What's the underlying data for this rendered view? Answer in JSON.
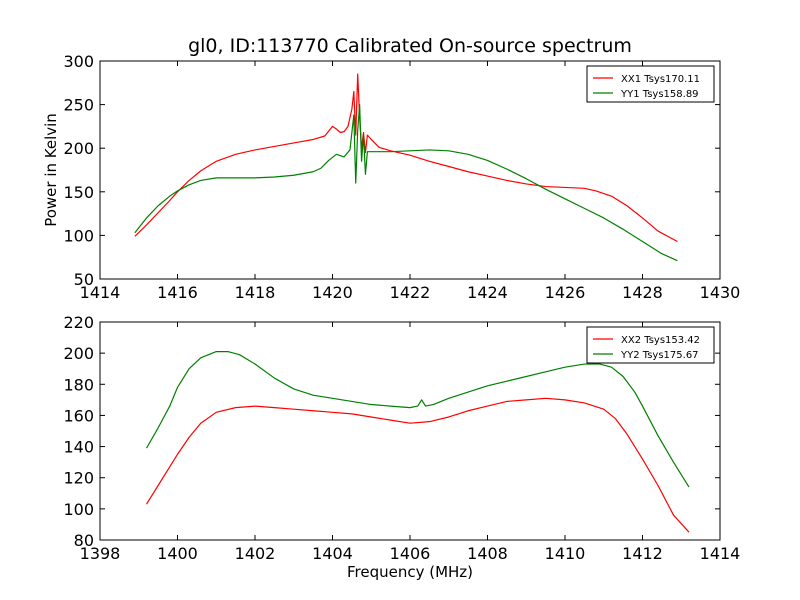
{
  "title": "gl0, ID:113770 Calibrated On-source spectrum",
  "colors": {
    "xx": "#ff0000",
    "yy": "#008000"
  },
  "chart_data": [
    {
      "type": "line",
      "ylabel": "Power in Kelvin",
      "xlabel": "",
      "xlim": [
        1414,
        1430
      ],
      "ylim": [
        50,
        300
      ],
      "xticks": [
        1414,
        1416,
        1418,
        1420,
        1422,
        1424,
        1426,
        1428,
        1430
      ],
      "yticks": [
        50,
        100,
        150,
        200,
        250,
        300
      ],
      "legend": "top-right",
      "series": [
        {
          "name": "XX1 Tsys170.11",
          "color": "#ff0000",
          "x": [
            1414.9,
            1415.2,
            1415.5,
            1415.8,
            1416.0,
            1416.3,
            1416.6,
            1417.0,
            1417.5,
            1418.0,
            1418.5,
            1419.0,
            1419.5,
            1419.8,
            1420.0,
            1420.1,
            1420.2,
            1420.3,
            1420.4,
            1420.5,
            1420.55,
            1420.6,
            1420.65,
            1420.7,
            1420.75,
            1420.8,
            1420.85,
            1420.9,
            1421.0,
            1421.2,
            1421.5,
            1422.0,
            1422.5,
            1423.0,
            1423.5,
            1424.0,
            1424.5,
            1425.0,
            1425.5,
            1426.0,
            1426.5,
            1426.8,
            1427.2,
            1427.6,
            1428.0,
            1428.4,
            1428.9
          ],
          "y": [
            99,
            112,
            126,
            140,
            150,
            163,
            174,
            185,
            193,
            198,
            202,
            206,
            210,
            214,
            225,
            222,
            218,
            219,
            225,
            245,
            265,
            215,
            285,
            235,
            200,
            218,
            195,
            215,
            210,
            201,
            197,
            192,
            185,
            179,
            173,
            168,
            163,
            159,
            156,
            155,
            154,
            151,
            145,
            134,
            120,
            105,
            93
          ]
        },
        {
          "name": "YY1 Tsys158.89",
          "color": "#008000",
          "x": [
            1414.9,
            1415.2,
            1415.5,
            1415.8,
            1416.0,
            1416.3,
            1416.6,
            1417.0,
            1417.5,
            1418.0,
            1418.5,
            1419.0,
            1419.5,
            1419.7,
            1419.9,
            1420.1,
            1420.3,
            1420.45,
            1420.55,
            1420.6,
            1420.65,
            1420.7,
            1420.75,
            1420.8,
            1420.85,
            1420.9,
            1421.0,
            1421.5,
            1422.0,
            1422.5,
            1423.0,
            1423.5,
            1424.0,
            1424.5,
            1425.0,
            1425.5,
            1426.0,
            1426.5,
            1427.0,
            1427.5,
            1428.0,
            1428.5,
            1428.9
          ],
          "y": [
            103,
            120,
            134,
            145,
            151,
            158,
            163,
            166,
            166,
            166,
            167,
            169,
            173,
            177,
            186,
            193,
            190,
            198,
            238,
            160,
            220,
            250,
            185,
            215,
            170,
            196,
            196,
            196,
            197,
            198,
            197,
            193,
            186,
            176,
            165,
            153,
            142,
            131,
            120,
            107,
            93,
            79,
            71
          ]
        }
      ]
    },
    {
      "type": "line",
      "ylabel": "",
      "xlabel": "Frequency (MHz)",
      "xlim": [
        1398,
        1414
      ],
      "ylim": [
        80,
        220
      ],
      "xticks": [
        1398,
        1400,
        1402,
        1404,
        1406,
        1408,
        1410,
        1412,
        1414
      ],
      "yticks": [
        80,
        100,
        120,
        140,
        160,
        180,
        200,
        220
      ],
      "legend": "top-right",
      "series": [
        {
          "name": "XX2 Tsys153.42",
          "color": "#ff0000",
          "x": [
            1399.2,
            1399.5,
            1399.8,
            1400.0,
            1400.3,
            1400.6,
            1401.0,
            1401.5,
            1402.0,
            1402.5,
            1403.0,
            1403.5,
            1404.0,
            1404.5,
            1405.0,
            1405.5,
            1406.0,
            1406.5,
            1407.0,
            1407.5,
            1408.0,
            1408.5,
            1409.0,
            1409.5,
            1410.0,
            1410.5,
            1411.0,
            1411.3,
            1411.6,
            1412.0,
            1412.4,
            1412.8,
            1413.2
          ],
          "y": [
            103,
            115,
            127,
            135,
            146,
            155,
            162,
            165,
            166,
            165,
            164,
            163,
            162,
            161,
            159,
            157,
            155,
            156,
            159,
            163,
            166,
            169,
            170,
            171,
            170,
            168,
            164,
            158,
            148,
            132,
            115,
            96,
            85
          ]
        },
        {
          "name": "YY2 Tsys175.67",
          "color": "#008000",
          "x": [
            1399.2,
            1399.5,
            1399.8,
            1400.0,
            1400.3,
            1400.6,
            1401.0,
            1401.3,
            1401.6,
            1402.0,
            1402.5,
            1403.0,
            1403.5,
            1404.0,
            1404.5,
            1405.0,
            1405.5,
            1406.0,
            1406.2,
            1406.3,
            1406.4,
            1406.6,
            1407.0,
            1407.5,
            1408.0,
            1408.5,
            1409.0,
            1409.5,
            1410.0,
            1410.5,
            1410.9,
            1411.2,
            1411.5,
            1411.8,
            1412.0,
            1412.4,
            1412.8,
            1413.2
          ],
          "y": [
            139,
            152,
            166,
            178,
            190,
            197,
            201,
            201,
            199,
            193,
            184,
            177,
            173,
            171,
            169,
            167,
            166,
            165,
            166,
            170,
            166,
            167,
            171,
            175,
            179,
            182,
            185,
            188,
            191,
            193,
            193,
            191,
            185,
            175,
            166,
            147,
            130,
            114
          ]
        }
      ]
    }
  ]
}
